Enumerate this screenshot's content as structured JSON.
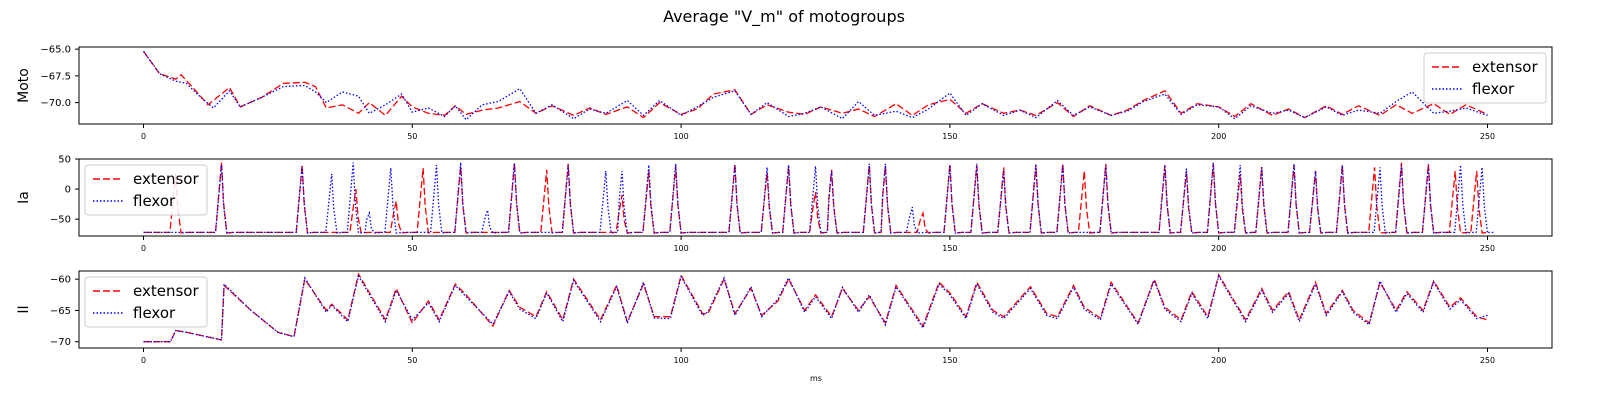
{
  "title": "Average \"V_m\" of motogroups",
  "xlabel": "ms",
  "chart_data": [
    {
      "type": "line",
      "ylabel": "Moto",
      "xlim": [
        -12,
        262
      ],
      "ylim": [
        -72.0,
        -64.8
      ],
      "xticks": [
        0,
        50,
        100,
        150,
        200,
        250
      ],
      "yticks": [
        -65.0,
        -67.5,
        -70.0
      ],
      "ytick_labels": [
        "−65.0",
        "−67.5",
        "−70.0"
      ],
      "legend": "upper-right",
      "series": [
        {
          "name": "extensor",
          "color": "#ff0000",
          "style": "dashed",
          "x": [
            0,
            3,
            6,
            7,
            9,
            12,
            16,
            18,
            22,
            26,
            30,
            32,
            34,
            37,
            40,
            42,
            45,
            48,
            50,
            53,
            56,
            58,
            60,
            63,
            66,
            70,
            73,
            76,
            80,
            83,
            86,
            90,
            93,
            96,
            100,
            103,
            106,
            110,
            113,
            116,
            120,
            123,
            126,
            130,
            133,
            136,
            140,
            143,
            146,
            150,
            153,
            156,
            160,
            163,
            166,
            170,
            173,
            176,
            180,
            183,
            186,
            190,
            193,
            196,
            200,
            203,
            206,
            210,
            213,
            216,
            220,
            223,
            226,
            230,
            233,
            236,
            240,
            243,
            246,
            250
          ],
          "y": [
            -65.2,
            -67.3,
            -67.8,
            -67.4,
            -68.5,
            -70.2,
            -68.6,
            -70.4,
            -69.5,
            -68.2,
            -68.1,
            -68.5,
            -70.5,
            -70.2,
            -71.0,
            -70.0,
            -71.2,
            -69.4,
            -70.4,
            -71.0,
            -71.2,
            -70.3,
            -71.1,
            -70.7,
            -70.5,
            -69.9,
            -71.0,
            -70.3,
            -71.2,
            -70.5,
            -71.1,
            -70.4,
            -71.4,
            -70.0,
            -71.1,
            -70.6,
            -69.2,
            -68.8,
            -71.1,
            -70.2,
            -70.9,
            -71.1,
            -70.4,
            -71.0,
            -70.6,
            -71.3,
            -70.1,
            -71.2,
            -70.2,
            -69.7,
            -71.0,
            -70.1,
            -71.0,
            -70.7,
            -71.2,
            -70.0,
            -71.3,
            -70.3,
            -71.2,
            -70.7,
            -69.8,
            -68.9,
            -71.0,
            -70.1,
            -70.4,
            -71.3,
            -70.1,
            -71.2,
            -70.6,
            -71.4,
            -70.3,
            -71.1,
            -70.3,
            -71.2,
            -70.2,
            -71.0,
            -70.1,
            -71.1,
            -70.2,
            -71.1
          ]
        },
        {
          "name": "flexor",
          "color": "#0000ff",
          "style": "dotted",
          "x": [
            0,
            3,
            6,
            8,
            10,
            13,
            16,
            18,
            22,
            26,
            30,
            32,
            34,
            37,
            40,
            42,
            45,
            48,
            50,
            53,
            56,
            58,
            60,
            63,
            66,
            70,
            73,
            76,
            80,
            83,
            86,
            90,
            93,
            96,
            100,
            103,
            106,
            110,
            113,
            116,
            120,
            123,
            126,
            130,
            133,
            136,
            140,
            143,
            146,
            150,
            153,
            156,
            160,
            163,
            166,
            170,
            173,
            176,
            180,
            183,
            186,
            190,
            193,
            196,
            200,
            203,
            206,
            210,
            213,
            216,
            220,
            223,
            226,
            230,
            233,
            236,
            240,
            243,
            246,
            250
          ],
          "y": [
            -65.2,
            -67.3,
            -68.0,
            -68.2,
            -69.2,
            -70.5,
            -68.9,
            -70.4,
            -69.5,
            -68.5,
            -68.4,
            -69.0,
            -70.0,
            -69.0,
            -69.4,
            -71.0,
            -70.2,
            -69.2,
            -70.9,
            -70.5,
            -71.3,
            -70.3,
            -71.6,
            -70.2,
            -69.9,
            -68.7,
            -71.0,
            -70.2,
            -71.5,
            -70.6,
            -71.0,
            -69.8,
            -71.2,
            -69.8,
            -71.2,
            -70.4,
            -69.5,
            -68.9,
            -71.1,
            -70.0,
            -71.3,
            -71.0,
            -70.4,
            -71.5,
            -69.9,
            -71.2,
            -70.8,
            -71.4,
            -70.6,
            -69.1,
            -71.2,
            -70.1,
            -71.2,
            -70.7,
            -71.4,
            -69.8,
            -71.2,
            -70.4,
            -71.2,
            -70.8,
            -69.9,
            -69.2,
            -71.1,
            -70.2,
            -70.4,
            -71.5,
            -70.3,
            -71.0,
            -70.7,
            -71.4,
            -70.4,
            -71.2,
            -70.7,
            -71.0,
            -69.9,
            -69.0,
            -71.0,
            -70.8,
            -70.5,
            -71.2
          ]
        }
      ]
    },
    {
      "type": "line",
      "ylabel": "Ia",
      "xlim": [
        -12,
        262
      ],
      "ylim": [
        -78,
        50
      ],
      "xticks": [
        0,
        50,
        100,
        150,
        200,
        250
      ],
      "yticks": [
        50,
        0,
        -50
      ],
      "ytick_labels": [
        "50",
        "0",
        "−50"
      ],
      "legend": "upper-left",
      "baseline": -72,
      "series": [
        {
          "name": "extensor",
          "color": "#ff0000",
          "style": "dashed",
          "spikes": [
            [
              6,
              25
            ],
            [
              14.5,
              45
            ],
            [
              29.5,
              40
            ],
            [
              39.5,
              0
            ],
            [
              47,
              -20
            ],
            [
              52,
              35
            ],
            [
              59,
              38
            ],
            [
              69,
              44
            ],
            [
              75,
              32
            ],
            [
              79,
              42
            ],
            [
              89,
              -10
            ],
            [
              94,
              30
            ],
            [
              99,
              38
            ],
            [
              110,
              42
            ],
            [
              116,
              28
            ],
            [
              120,
              38
            ],
            [
              125,
              -5
            ],
            [
              128,
              32
            ],
            [
              135,
              40
            ],
            [
              138,
              38
            ],
            [
              145,
              -40
            ],
            [
              150,
              42
            ],
            [
              155,
              40
            ],
            [
              160,
              36
            ],
            [
              166,
              40
            ],
            [
              171,
              42
            ],
            [
              175,
              30
            ],
            [
              179,
              42
            ],
            [
              190,
              40
            ],
            [
              194,
              30
            ],
            [
              199,
              42
            ],
            [
              204,
              25
            ],
            [
              208,
              34
            ],
            [
              214,
              40
            ],
            [
              218,
              30
            ],
            [
              223,
              40
            ],
            [
              229,
              36
            ],
            [
              234,
              44
            ],
            [
              239,
              42
            ],
            [
              244,
              30
            ],
            [
              248,
              30
            ]
          ]
        },
        {
          "name": "flexor",
          "color": "#0000ff",
          "style": "dotted",
          "spikes": [
            [
              14.5,
              40
            ],
            [
              29.5,
              38
            ],
            [
              35,
              25
            ],
            [
              39,
              44
            ],
            [
              42,
              -40
            ],
            [
              46,
              35
            ],
            [
              54.5,
              40
            ],
            [
              59,
              44
            ],
            [
              64,
              -35
            ],
            [
              69,
              43
            ],
            [
              79,
              40
            ],
            [
              86,
              30
            ],
            [
              89,
              30
            ],
            [
              94,
              40
            ],
            [
              99,
              42
            ],
            [
              110,
              40
            ],
            [
              116,
              36
            ],
            [
              120,
              40
            ],
            [
              125,
              38
            ],
            [
              128,
              30
            ],
            [
              135,
              42
            ],
            [
              138,
              42
            ],
            [
              143,
              -30
            ],
            [
              150,
              40
            ],
            [
              155,
              42
            ],
            [
              160,
              30
            ],
            [
              166,
              42
            ],
            [
              171,
              40
            ],
            [
              179,
              40
            ],
            [
              190,
              40
            ],
            [
              194,
              34
            ],
            [
              199,
              44
            ],
            [
              204,
              40
            ],
            [
              208,
              38
            ],
            [
              214,
              42
            ],
            [
              218,
              30
            ],
            [
              223,
              40
            ],
            [
              230,
              36
            ],
            [
              234,
              40
            ],
            [
              239,
              38
            ],
            [
              245,
              40
            ],
            [
              249,
              36
            ]
          ]
        }
      ]
    },
    {
      "type": "line",
      "ylabel": "II",
      "xlim": [
        -12,
        262
      ],
      "ylim": [
        -71,
        -58.7
      ],
      "xticks": [
        0,
        50,
        100,
        150,
        200,
        250
      ],
      "yticks": [
        -60,
        -65,
        -70
      ],
      "ytick_labels": [
        "−60",
        "−65",
        "−70"
      ],
      "legend": "upper-left",
      "series": [
        {
          "name": "extensor",
          "color": "#ff0000",
          "style": "dashed",
          "x": [
            0,
            5,
            6,
            8,
            14.5,
            15,
            20,
            25,
            28,
            30,
            34,
            35,
            38,
            40,
            45,
            47,
            50,
            53,
            55,
            58,
            60,
            65,
            68,
            70,
            73,
            75,
            78,
            80,
            85,
            88,
            90,
            93,
            95,
            98,
            100,
            104,
            105,
            108,
            110,
            113,
            115,
            118,
            120,
            123,
            125,
            128,
            130,
            133,
            135,
            138,
            140,
            145,
            148,
            150,
            153,
            155,
            158,
            160,
            165,
            168,
            170,
            173,
            175,
            178,
            180,
            185,
            188,
            190,
            193,
            195,
            198,
            200,
            205,
            208,
            210,
            213,
            215,
            218,
            220,
            223,
            225,
            228,
            230,
            233,
            235,
            238,
            240,
            243,
            245,
            248,
            250
          ],
          "y": [
            -70,
            -70,
            -68.2,
            -68.5,
            -69.7,
            -61.0,
            -65.0,
            -68.5,
            -69.2,
            -60.0,
            -65.0,
            -64.0,
            -66.5,
            -59.2,
            -66.5,
            -61.5,
            -67.0,
            -63.5,
            -66.5,
            -60.8,
            -62.5,
            -67.5,
            -61.8,
            -64.5,
            -66.0,
            -62.0,
            -66.5,
            -60.0,
            -66.5,
            -61.0,
            -66.8,
            -60.8,
            -66.0,
            -66.0,
            -59.4,
            -65.5,
            -65.5,
            -60.0,
            -65.5,
            -61.5,
            -65.8,
            -63.5,
            -60.0,
            -65.0,
            -62.5,
            -66.0,
            -61.5,
            -65.0,
            -62.8,
            -67.0,
            -61.0,
            -67.5,
            -60.5,
            -62.2,
            -66.0,
            -60.5,
            -65.0,
            -66.0,
            -61.2,
            -65.5,
            -66.0,
            -61.0,
            -64.5,
            -66.2,
            -60.5,
            -67.0,
            -60.0,
            -64.5,
            -66.5,
            -62.0,
            -66.0,
            -59.3,
            -66.5,
            -61.5,
            -65.0,
            -62.0,
            -66.5,
            -60.5,
            -65.5,
            -61.8,
            -65.0,
            -67.0,
            -60.5,
            -65.0,
            -62.0,
            -65.0,
            -60.3,
            -64.5,
            -63.0,
            -66.0,
            -66.5
          ]
        },
        {
          "name": "flexor",
          "color": "#0000ff",
          "style": "dotted",
          "x": [
            0,
            5,
            6,
            8,
            14.5,
            15,
            20,
            25,
            28,
            30,
            34,
            35,
            38,
            40,
            45,
            47,
            50,
            53,
            55,
            58,
            60,
            65,
            68,
            70,
            73,
            75,
            78,
            80,
            85,
            88,
            90,
            93,
            95,
            98,
            100,
            104,
            105,
            108,
            110,
            113,
            115,
            118,
            120,
            123,
            125,
            128,
            130,
            133,
            135,
            138,
            140,
            145,
            148,
            150,
            153,
            155,
            158,
            160,
            165,
            168,
            170,
            173,
            175,
            178,
            180,
            185,
            188,
            190,
            193,
            195,
            198,
            200,
            205,
            208,
            210,
            213,
            215,
            218,
            220,
            223,
            225,
            228,
            230,
            233,
            235,
            238,
            240,
            243,
            245,
            248,
            250
          ],
          "y": [
            -70,
            -70,
            -68.2,
            -68.5,
            -69.7,
            -60.8,
            -65.0,
            -68.5,
            -69.2,
            -59.8,
            -65.3,
            -64.2,
            -66.8,
            -59.5,
            -66.8,
            -61.8,
            -66.5,
            -63.8,
            -66.8,
            -61.0,
            -62.8,
            -67.2,
            -62.0,
            -64.8,
            -66.3,
            -62.2,
            -66.8,
            -60.2,
            -66.8,
            -61.2,
            -67.0,
            -60.5,
            -66.2,
            -66.3,
            -59.6,
            -65.8,
            -65.2,
            -59.8,
            -65.8,
            -61.2,
            -66.0,
            -63.2,
            -59.8,
            -65.3,
            -62.8,
            -66.3,
            -61.3,
            -65.3,
            -62.5,
            -67.3,
            -61.2,
            -67.8,
            -60.8,
            -62.5,
            -66.3,
            -60.8,
            -65.3,
            -66.3,
            -61.5,
            -65.8,
            -66.3,
            -61.3,
            -64.8,
            -66.5,
            -60.8,
            -67.2,
            -60.2,
            -64.8,
            -66.8,
            -62.3,
            -66.3,
            -59.5,
            -66.8,
            -61.8,
            -65.3,
            -62.3,
            -66.8,
            -60.8,
            -65.8,
            -62.0,
            -65.3,
            -67.3,
            -60.3,
            -65.3,
            -62.3,
            -65.3,
            -60.5,
            -64.8,
            -63.3,
            -66.3,
            -65.8
          ]
        }
      ]
    }
  ]
}
